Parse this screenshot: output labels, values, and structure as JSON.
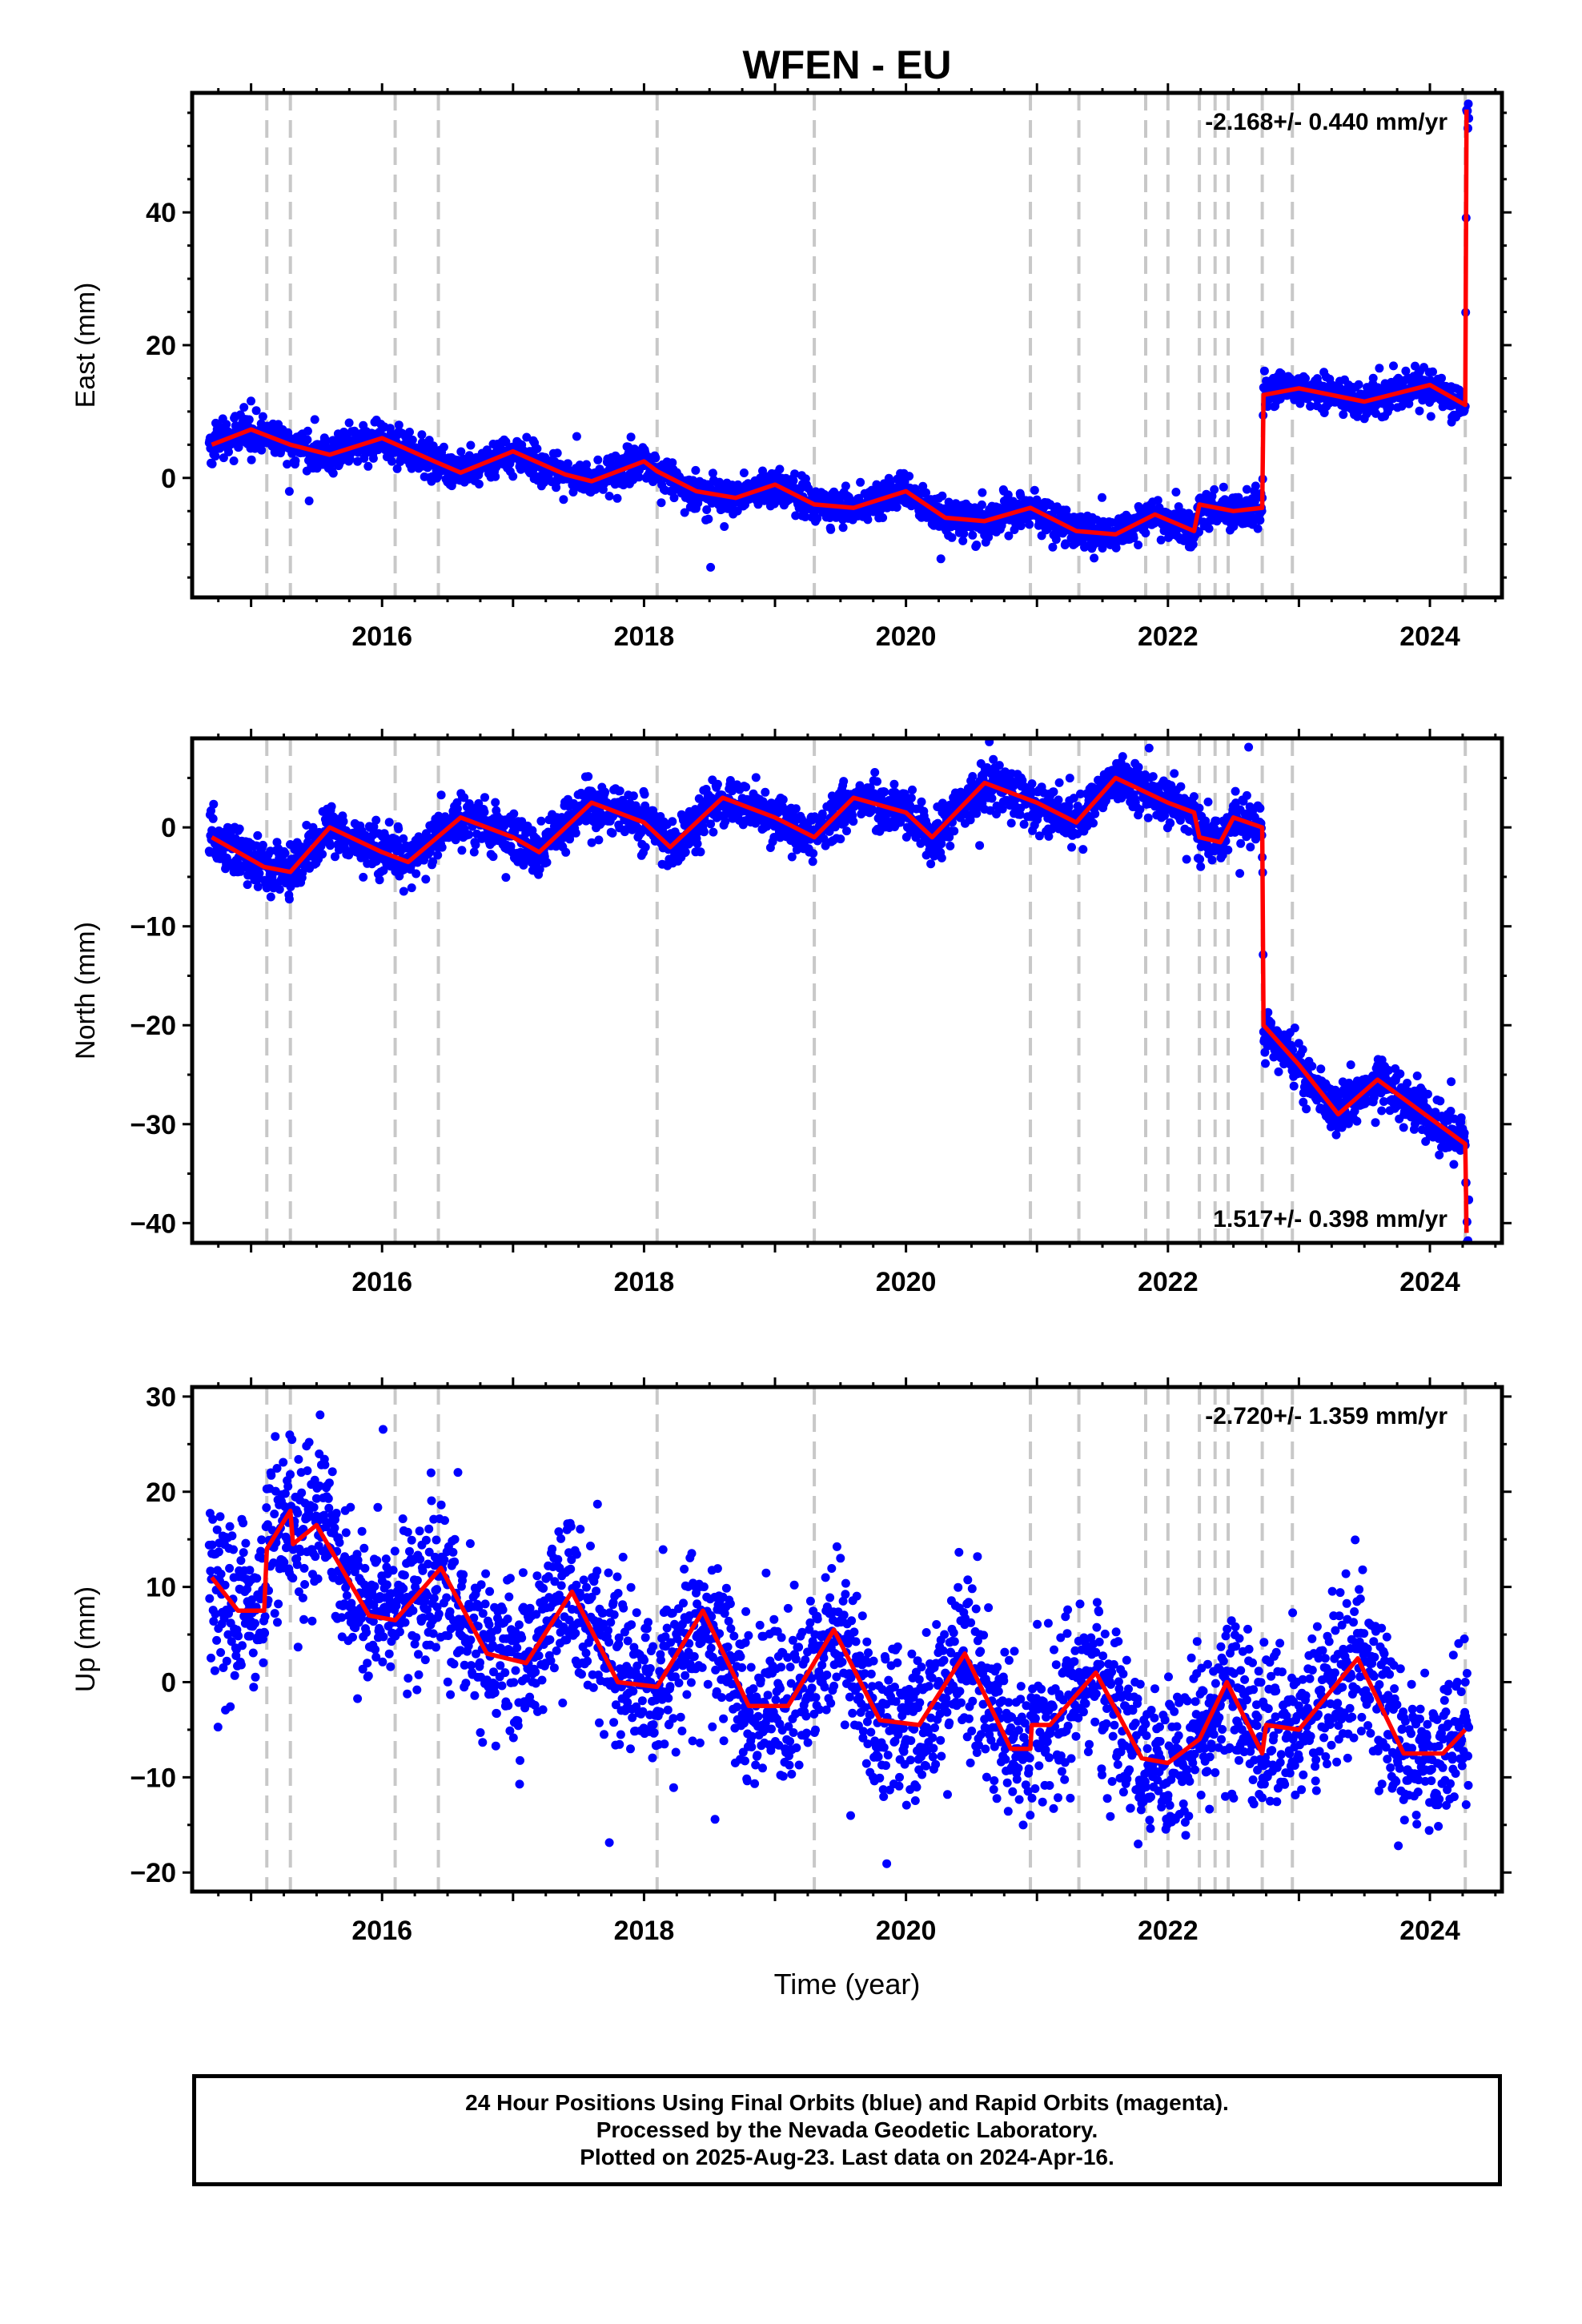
{
  "title": "WFEN - EU",
  "xlabel": "Time (year)",
  "caption": {
    "line1": "24 Hour Positions Using Final Orbits (blue) and Rapid Orbits (magenta).",
    "line2": "Processed by the Nevada Geodetic Laboratory.",
    "line3": "Plotted on 2025-Aug-23. Last data on 2024-Apr-16."
  },
  "colors": {
    "final_orbits": "#0000ff",
    "model": "#ff0000",
    "event_lines": "#c8c8c8",
    "frame": "#000000"
  },
  "chart_data": [
    {
      "type": "scatter",
      "name": "east",
      "ylabel": "East (mm)",
      "rate_label": "-2.168+/- 0.440 mm/yr",
      "rate_position": "top-right",
      "xlim": [
        2014.55,
        2024.55
      ],
      "ylim": [
        -18,
        58
      ],
      "xticks": [
        2016,
        2018,
        2020,
        2022,
        2024
      ],
      "yticks": [
        0,
        20,
        40
      ],
      "event_lines": [
        2015.12,
        2015.3,
        2016.1,
        2016.43,
        2018.1,
        2019.3,
        2020.95,
        2021.32,
        2021.83,
        2022.0,
        2022.24,
        2022.36,
        2022.46,
        2022.72,
        2022.95,
        2024.27
      ],
      "offsets": [
        [
          2022.72,
          17.5
        ],
        [
          2024.27,
          44
        ]
      ],
      "model_points": [
        [
          2014.7,
          5.0
        ],
        [
          2015.0,
          7.3
        ],
        [
          2015.3,
          5.0
        ],
        [
          2015.6,
          3.5
        ],
        [
          2016.0,
          6.0
        ],
        [
          2016.4,
          2.5
        ],
        [
          2016.6,
          0.8
        ],
        [
          2017.0,
          4.0
        ],
        [
          2017.4,
          0.5
        ],
        [
          2017.6,
          -0.5
        ],
        [
          2018.0,
          2.5
        ],
        [
          2018.1,
          1.0
        ],
        [
          2018.4,
          -2.0
        ],
        [
          2018.7,
          -3.0
        ],
        [
          2019.0,
          -1.0
        ],
        [
          2019.3,
          -4.0
        ],
        [
          2019.6,
          -4.5
        ],
        [
          2020.0,
          -2.0
        ],
        [
          2020.3,
          -6.0
        ],
        [
          2020.6,
          -6.5
        ],
        [
          2020.95,
          -4.5
        ],
        [
          2021.3,
          -8.0
        ],
        [
          2021.6,
          -8.5
        ],
        [
          2021.9,
          -5.5
        ],
        [
          2022.2,
          -8.0
        ],
        [
          2022.24,
          -4.0
        ],
        [
          2022.5,
          -5.0
        ],
        [
          2022.72,
          -4.5
        ],
        [
          2022.73,
          12.5
        ],
        [
          2023.0,
          13.5
        ],
        [
          2023.5,
          11.5
        ],
        [
          2024.0,
          14.0
        ],
        [
          2024.27,
          11.0
        ],
        [
          2024.28,
          55.5
        ]
      ],
      "scatter": {
        "noise_mm": 1.3,
        "points_per_year": 290
      }
    },
    {
      "type": "scatter",
      "name": "north",
      "ylabel": "North (mm)",
      "rate_label": "1.517+/- 0.398 mm/yr",
      "rate_position": "bottom-right",
      "xlim": [
        2014.55,
        2024.55
      ],
      "ylim": [
        -42,
        9
      ],
      "xticks": [
        2016,
        2018,
        2020,
        2022,
        2024
      ],
      "yticks": [
        0,
        -10,
        -20,
        -30,
        -40
      ],
      "event_lines": [
        2015.12,
        2015.3,
        2016.1,
        2016.43,
        2018.1,
        2019.3,
        2020.95,
        2021.32,
        2021.83,
        2022.0,
        2022.24,
        2022.36,
        2022.46,
        2022.72,
        2022.95,
        2024.27
      ],
      "offsets": [
        [
          2022.72,
          -19.5
        ],
        [
          2024.27,
          -9
        ]
      ],
      "model_points": [
        [
          2014.7,
          -1.0
        ],
        [
          2015.1,
          -4.0
        ],
        [
          2015.3,
          -4.5
        ],
        [
          2015.6,
          0.0
        ],
        [
          2016.0,
          -2.5
        ],
        [
          2016.2,
          -3.5
        ],
        [
          2016.6,
          1.0
        ],
        [
          2017.0,
          -1.0
        ],
        [
          2017.2,
          -2.5
        ],
        [
          2017.6,
          2.5
        ],
        [
          2018.0,
          0.5
        ],
        [
          2018.2,
          -2.0
        ],
        [
          2018.6,
          3.0
        ],
        [
          2019.0,
          1.0
        ],
        [
          2019.3,
          -1.0
        ],
        [
          2019.6,
          3.0
        ],
        [
          2020.0,
          1.5
        ],
        [
          2020.2,
          -1.0
        ],
        [
          2020.6,
          4.5
        ],
        [
          2021.0,
          2.5
        ],
        [
          2021.3,
          0.5
        ],
        [
          2021.6,
          5.0
        ],
        [
          2022.0,
          2.5
        ],
        [
          2022.2,
          1.5
        ],
        [
          2022.24,
          -1.0
        ],
        [
          2022.4,
          -1.5
        ],
        [
          2022.5,
          1.0
        ],
        [
          2022.72,
          0.0
        ],
        [
          2022.73,
          -20.0
        ],
        [
          2023.0,
          -24.0
        ],
        [
          2023.3,
          -29.0
        ],
        [
          2023.6,
          -25.5
        ],
        [
          2024.27,
          -32.0
        ],
        [
          2024.28,
          -41.0
        ]
      ],
      "scatter": {
        "noise_mm": 1.2,
        "points_per_year": 290
      }
    },
    {
      "type": "scatter",
      "name": "up",
      "ylabel": "Up (mm)",
      "rate_label": "-2.720+/- 1.359 mm/yr",
      "rate_position": "top-right",
      "xlim": [
        2014.55,
        2024.55
      ],
      "ylim": [
        -22,
        31
      ],
      "xticks": [
        2016,
        2018,
        2020,
        2022,
        2024
      ],
      "yticks": [
        30,
        20,
        10,
        0,
        -10,
        -20
      ],
      "event_lines": [
        2015.12,
        2015.3,
        2016.1,
        2016.43,
        2018.1,
        2019.3,
        2020.95,
        2021.32,
        2021.83,
        2022.0,
        2022.24,
        2022.36,
        2022.46,
        2022.72,
        2022.95,
        2024.27
      ],
      "offsets": [],
      "model_points": [
        [
          2014.7,
          11.0
        ],
        [
          2014.9,
          7.5
        ],
        [
          2015.1,
          7.5
        ],
        [
          2015.12,
          14.0
        ],
        [
          2015.3,
          18.0
        ],
        [
          2015.32,
          14.5
        ],
        [
          2015.5,
          16.5
        ],
        [
          2015.9,
          7.0
        ],
        [
          2016.1,
          6.5
        ],
        [
          2016.45,
          12.0
        ],
        [
          2016.8,
          3.0
        ],
        [
          2017.1,
          2.0
        ],
        [
          2017.45,
          9.5
        ],
        [
          2017.8,
          0.0
        ],
        [
          2018.1,
          -0.5
        ],
        [
          2018.45,
          7.5
        ],
        [
          2018.8,
          -2.5
        ],
        [
          2019.1,
          -2.5
        ],
        [
          2019.45,
          5.5
        ],
        [
          2019.8,
          -4.0
        ],
        [
          2020.1,
          -4.5
        ],
        [
          2020.45,
          3.0
        ],
        [
          2020.8,
          -7.0
        ],
        [
          2020.95,
          -7.0
        ],
        [
          2020.96,
          -4.5
        ],
        [
          2021.1,
          -4.5
        ],
        [
          2021.45,
          1.0
        ],
        [
          2021.8,
          -8.0
        ],
        [
          2022.0,
          -8.5
        ],
        [
          2022.24,
          -6.0
        ],
        [
          2022.45,
          0.0
        ],
        [
          2022.72,
          -7.5
        ],
        [
          2022.75,
          -4.5
        ],
        [
          2023.0,
          -5.0
        ],
        [
          2023.45,
          2.5
        ],
        [
          2023.8,
          -7.5
        ],
        [
          2024.1,
          -7.5
        ],
        [
          2024.27,
          -5.0
        ]
      ],
      "scatter": {
        "noise_mm": 4.2,
        "points_per_year": 290
      }
    }
  ]
}
